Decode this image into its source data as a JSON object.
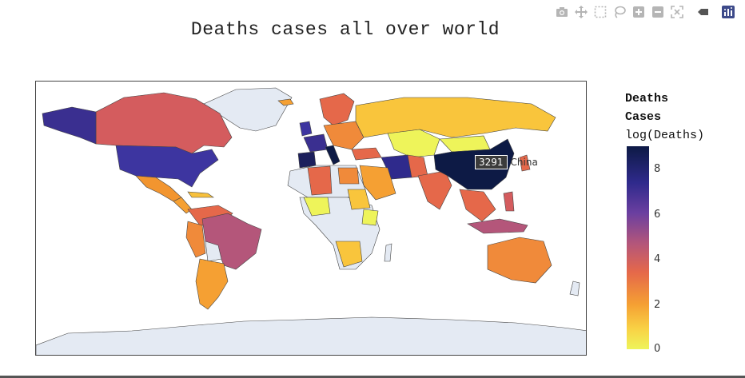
{
  "title": "Deaths cases all over world",
  "modebar": [
    {
      "name": "camera-icon"
    },
    {
      "name": "pan-icon"
    },
    {
      "name": "box-select-icon"
    },
    {
      "name": "lasso-select-icon"
    },
    {
      "name": "zoom-in-icon"
    },
    {
      "name": "zoom-out-icon"
    },
    {
      "name": "reset-scale-icon"
    },
    {
      "name": "hover-icon"
    },
    {
      "name": "plotly-logo-icon"
    }
  ],
  "colorbar": {
    "title_line1": "Deaths",
    "title_line2": "Cases",
    "subtitle": "log(Deaths)",
    "ticks": [
      "8",
      "6",
      "4",
      "2",
      "0"
    ],
    "range": [
      0,
      9
    ]
  },
  "hover": {
    "value": "3291",
    "country": "China"
  },
  "chart_data": {
    "type": "choropleth",
    "colorscale": "log(Deaths)",
    "regions": [
      {
        "name": "China",
        "deaths": 3291
      }
    ]
  },
  "colors": {
    "land_default": "#e4eaf3",
    "scale_high": "#0d1a45",
    "scale_low": "#eef45a"
  }
}
